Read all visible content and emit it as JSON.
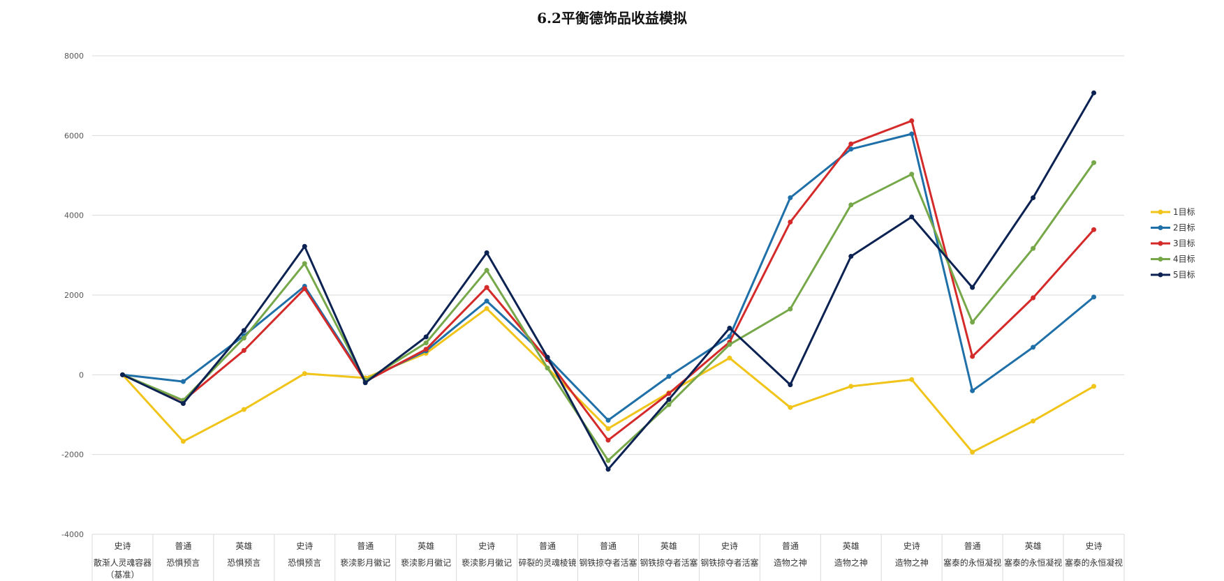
{
  "chart_data": {
    "type": "line",
    "title": "6.2平衡德饰品收益模拟",
    "ylim": [
      -4000,
      8000
    ],
    "yticks": [
      -4000,
      -2000,
      0,
      2000,
      4000,
      6000,
      8000
    ],
    "grid": true,
    "legend": "right",
    "categories": [
      {
        "tier": "史诗",
        "name": "散渐人灵魂容器",
        "note": "（基准）"
      },
      {
        "tier": "普通",
        "name": "恐惧预言"
      },
      {
        "tier": "英雄",
        "name": "恐惧预言"
      },
      {
        "tier": "史诗",
        "name": "恐惧预言"
      },
      {
        "tier": "普通",
        "name": "亵渎影月徽记"
      },
      {
        "tier": "英雄",
        "name": "亵渎影月徽记"
      },
      {
        "tier": "史诗",
        "name": "亵渎影月徽记"
      },
      {
        "tier": "普通",
        "name": "碎裂的灵魂棱镜"
      },
      {
        "tier": "普通",
        "name": "钢铁掠夺者活塞"
      },
      {
        "tier": "英雄",
        "name": "钢铁掠夺者活塞"
      },
      {
        "tier": "史诗",
        "name": "钢铁掠夺者活塞"
      },
      {
        "tier": "普通",
        "name": "造物之神"
      },
      {
        "tier": "英雄",
        "name": "造物之神"
      },
      {
        "tier": "史诗",
        "name": "造物之神"
      },
      {
        "tier": "普通",
        "name": "塞泰的永恒凝视"
      },
      {
        "tier": "英雄",
        "name": "塞泰的永恒凝视"
      },
      {
        "tier": "史诗",
        "name": "塞泰的永恒凝视"
      }
    ],
    "series": [
      {
        "name": "1目标",
        "color": "#f0c419",
        "values": [
          0,
          -1670,
          -870,
          30,
          -80,
          540,
          1660,
          170,
          -1350,
          -450,
          420,
          -820,
          -290,
          -120,
          -1940,
          -1160,
          -290
        ]
      },
      {
        "name": "2目标",
        "color": "#1f6fa8",
        "values": [
          0,
          -170,
          980,
          2220,
          -140,
          600,
          1850,
          430,
          -1140,
          -40,
          960,
          4440,
          5660,
          6040,
          -400,
          690,
          1950
        ]
      },
      {
        "name": "3目标",
        "color": "#d42a2a",
        "values": [
          0,
          -650,
          610,
          2160,
          -170,
          640,
          2190,
          380,
          -1640,
          -470,
          820,
          3830,
          5790,
          6370,
          460,
          1930,
          3640
        ]
      },
      {
        "name": "4目标",
        "color": "#76a84a",
        "values": [
          0,
          -640,
          920,
          2790,
          -150,
          800,
          2620,
          170,
          -2150,
          -750,
          760,
          1650,
          4260,
          5030,
          1320,
          3170,
          5320
        ]
      },
      {
        "name": "5目标",
        "color": "#0c2252",
        "values": [
          0,
          -720,
          1110,
          3220,
          -200,
          950,
          3060,
          440,
          -2370,
          -620,
          1170,
          -250,
          2970,
          3960,
          2190,
          4440,
          7070
        ]
      }
    ]
  }
}
